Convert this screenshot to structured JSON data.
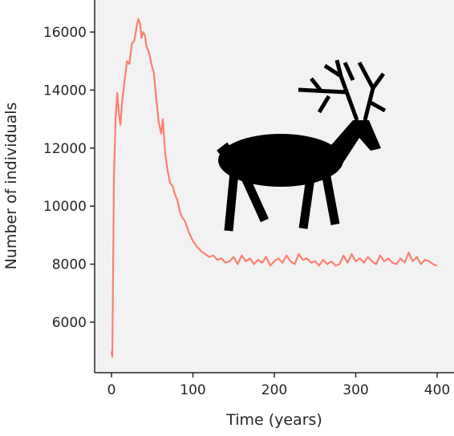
{
  "chart_data": {
    "type": "line",
    "xlabel": "Time (years)",
    "ylabel": "Number of individuals",
    "x": [
      0,
      1,
      3,
      5,
      7,
      9,
      11,
      13,
      16,
      19,
      22,
      25,
      28,
      31,
      33,
      35,
      37,
      39,
      41,
      43,
      46,
      49,
      52,
      55,
      58,
      61,
      63,
      66,
      69,
      72,
      75,
      78,
      81,
      84,
      87,
      90,
      95,
      100,
      105,
      110,
      115,
      120,
      125,
      130,
      135,
      140,
      145,
      150,
      155,
      160,
      165,
      170,
      175,
      180,
      185,
      190,
      195,
      200,
      205,
      210,
      215,
      220,
      225,
      230,
      235,
      240,
      245,
      250,
      255,
      260,
      265,
      270,
      275,
      280,
      285,
      290,
      295,
      300,
      305,
      310,
      315,
      320,
      325,
      330,
      335,
      340,
      345,
      350,
      355,
      360,
      365,
      370,
      375,
      380,
      385,
      390,
      395,
      400
    ],
    "series": [
      {
        "color": "#fa8072",
        "values": [
          5000,
          4800,
          11000,
          13000,
          13900,
          13200,
          12800,
          13600,
          14300,
          15000,
          14900,
          15600,
          15700,
          16200,
          16450,
          16300,
          15800,
          16000,
          15900,
          15500,
          15300,
          14900,
          14600,
          13700,
          12900,
          12500,
          13000,
          11800,
          11200,
          10800,
          10700,
          10400,
          10200,
          9800,
          9600,
          9500,
          9100,
          8800,
          8600,
          8450,
          8350,
          8250,
          8300,
          8150,
          8200,
          8050,
          8100,
          8250,
          8000,
          8300,
          8100,
          8200,
          8000,
          8150,
          8050,
          8250,
          7950,
          8100,
          8200,
          8050,
          8300,
          8100,
          8000,
          8350,
          8150,
          8200,
          8050,
          8100,
          7950,
          8150,
          8000,
          8100,
          7950,
          8000,
          8300,
          8050,
          8350,
          8100,
          8200,
          8050,
          8250,
          8100,
          8000,
          8300,
          8100,
          8200,
          8050,
          8000,
          8200,
          8050,
          8400,
          8100,
          8250,
          8000,
          8150,
          8100,
          8000,
          7950
        ]
      }
    ],
    "xlim": [
      -20.7,
      420.7
    ],
    "ylim": [
      4260,
      17105
    ],
    "xticks": [
      0,
      100,
      200,
      300,
      400
    ],
    "yticks": [
      6000,
      8000,
      10000,
      12000,
      14000,
      16000
    ]
  }
}
